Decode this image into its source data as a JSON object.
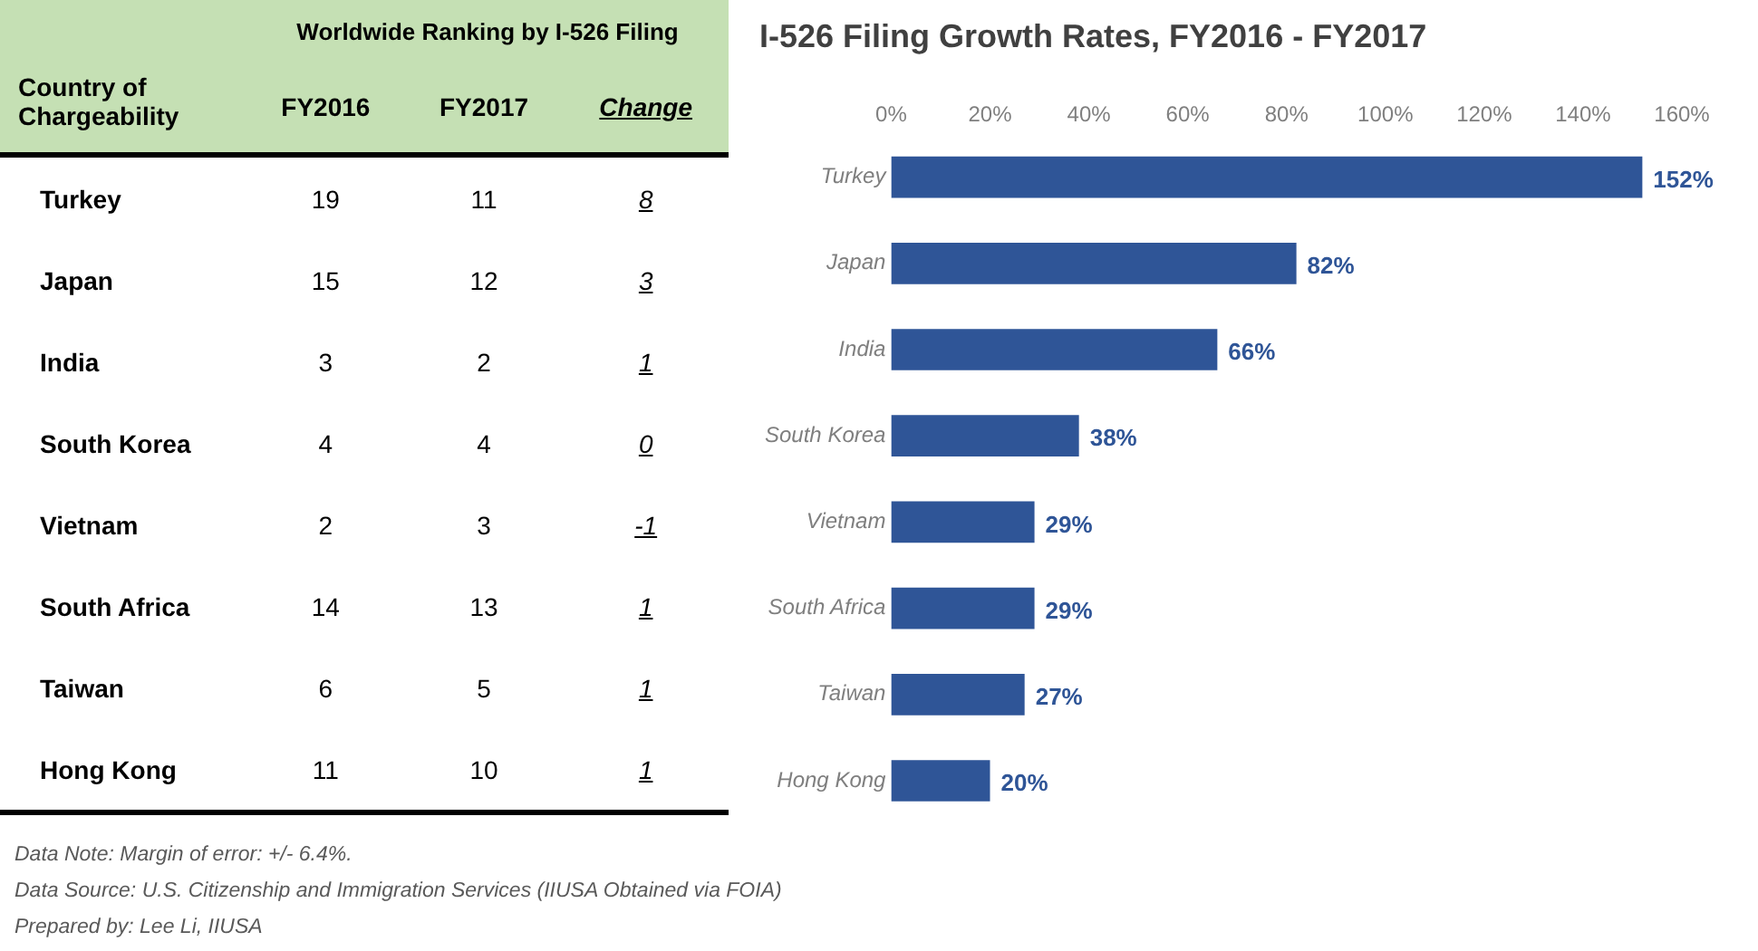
{
  "chart_data": [
    {
      "type": "other",
      "title": "Worldwide Ranking by I-526 Filing",
      "ylabel": "Country of Chargeability",
      "categories": [
        "Turkey",
        "Japan",
        "India",
        "South Korea",
        "Vietnam",
        "South Africa",
        "Taiwan",
        "Hong Kong"
      ],
      "series": [
        {
          "name": "FY2016",
          "values": [
            19,
            15,
            3,
            4,
            2,
            14,
            6,
            11
          ]
        },
        {
          "name": "FY2017",
          "values": [
            11,
            12,
            2,
            4,
            3,
            13,
            5,
            10
          ]
        },
        {
          "name": "Change",
          "values": [
            8,
            3,
            1,
            0,
            -1,
            1,
            1,
            1
          ]
        }
      ],
      "data_labels": true,
      "annotations": [
        "Data Note: Margin of error: +/- 6.4%.",
        "Data Source: U.S. Citizenship and Immigration Services (IIUSA Obtained via FOIA)",
        "Prepared by: Lee Li, IIUSA"
      ]
    },
    {
      "type": "bar",
      "orientation": "horizontal",
      "title": "I-526 Filing Growth Rates, FY2016 - FY2017",
      "categories": [
        "Turkey",
        "Japan",
        "India",
        "South Korea",
        "Vietnam",
        "South Africa",
        "Taiwan",
        "Hong Kong"
      ],
      "values": [
        152,
        82,
        66,
        38,
        29,
        29,
        27,
        20
      ],
      "color": "#2f5597",
      "value_labels": [
        "152%",
        "82%",
        "66%",
        "38%",
        "29%",
        "29%",
        "27%",
        "20%"
      ],
      "xlim": [
        0,
        160
      ],
      "xticks": [
        {
          "value": 0,
          "label": "0%"
        },
        {
          "value": 20,
          "label": "20%"
        },
        {
          "value": 40,
          "label": "40%"
        },
        {
          "value": 60,
          "label": "60%"
        },
        {
          "value": 80,
          "label": "80%"
        },
        {
          "value": 100,
          "label": "100%"
        },
        {
          "value": 120,
          "label": "120%"
        },
        {
          "value": 140,
          "label": "140%"
        },
        {
          "value": 160,
          "label": "160%"
        }
      ]
    }
  ]
}
